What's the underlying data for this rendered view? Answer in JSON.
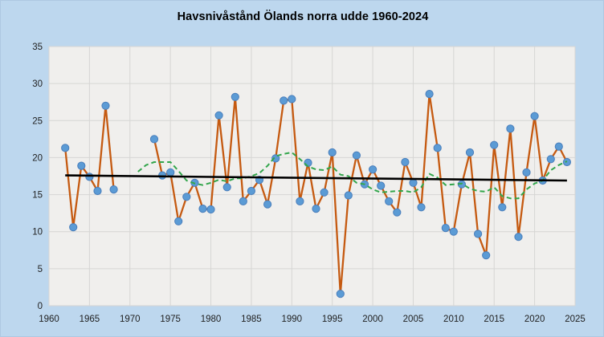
{
  "title": "Havsnivåstånd Ölands norra udde 1960-2024",
  "colors": {
    "background": "#BDD7EE",
    "plot_background": "#F0EFED",
    "gridline": "#D6D6D4",
    "observed_line": "#C55A11",
    "marker_fill": "#5B9BD5",
    "marker_edge": "#4A7EBB",
    "moving_average_line": "#33A64C",
    "trend_line": "#000000",
    "tick_text": "#1F1F1F",
    "title_text": "#000000"
  },
  "chart_data": {
    "type": "line",
    "title": "Havsnivåstånd Ölands norra udde 1960-2024",
    "xlabel": "",
    "ylabel": "",
    "xlim": [
      1960,
      2025
    ],
    "ylim": [
      0,
      35
    ],
    "x_ticks": [
      1960,
      1965,
      1970,
      1975,
      1980,
      1985,
      1990,
      1995,
      2000,
      2005,
      2010,
      2015,
      2020,
      2025
    ],
    "y_ticks": [
      0,
      5,
      10,
      15,
      20,
      25,
      30,
      35
    ],
    "grid": true,
    "legend": "none",
    "series": [
      {
        "id": "observed",
        "style": "solid-line-with-markers",
        "line_color": "#C55A11",
        "marker_color": "#5B9BD5",
        "years": [
          1962,
          1963,
          1964,
          1965,
          1966,
          1967,
          1968,
          1969,
          1970,
          1971,
          1972,
          1973,
          1974,
          1975,
          1976,
          1977,
          1978,
          1979,
          1980,
          1981,
          1982,
          1983,
          1984,
          1985,
          1986,
          1987,
          1988,
          1989,
          1990,
          1991,
          1992,
          1993,
          1994,
          1995,
          1996,
          1997,
          1998,
          1999,
          2000,
          2001,
          2002,
          2003,
          2004,
          2005,
          2006,
          2007,
          2008,
          2009,
          2010,
          2011,
          2012,
          2013,
          2014,
          2015,
          2016,
          2017,
          2018,
          2019,
          2020,
          2021,
          2022,
          2023,
          2024
        ],
        "values": [
          21.3,
          10.6,
          18.9,
          17.4,
          15.5,
          27.0,
          15.7,
          null,
          null,
          null,
          null,
          22.5,
          17.6,
          18.0,
          11.4,
          14.7,
          16.6,
          13.1,
          13.0,
          25.7,
          16.0,
          28.2,
          14.1,
          15.5,
          17.0,
          13.7,
          19.9,
          27.7,
          27.9,
          14.1,
          19.3,
          13.1,
          15.3,
          20.7,
          1.6,
          14.9,
          20.3,
          16.4,
          18.4,
          16.2,
          14.1,
          12.6,
          19.4,
          16.6,
          13.3,
          28.6,
          21.3,
          10.5,
          10.0,
          16.4,
          20.7,
          9.7,
          6.8,
          21.7,
          13.3,
          23.9,
          9.3,
          18.0,
          25.6,
          16.9,
          19.8,
          21.5,
          19.4
        ]
      },
      {
        "id": "moving-average",
        "style": "dashed-line",
        "line_color": "#33A64C",
        "years": [
          1971,
          1972,
          1973,
          1974,
          1975,
          1976,
          1977,
          1978,
          1979,
          1980,
          1981,
          1982,
          1983,
          1984,
          1985,
          1986,
          1987,
          1988,
          1989,
          1990,
          1991,
          1992,
          1993,
          1994,
          1995,
          1996,
          1997,
          1998,
          1999,
          2000,
          2001,
          2002,
          2003,
          2004,
          2005,
          2006,
          2007,
          2008,
          2009,
          2010,
          2011,
          2012,
          2013,
          2014,
          2015,
          2016,
          2017,
          2018,
          2019,
          2020,
          2021,
          2022,
          2023,
          2024
        ],
        "values": [
          18.1,
          19.0,
          19.4,
          19.4,
          19.4,
          18.2,
          16.9,
          16.5,
          16.3,
          16.6,
          17.0,
          16.8,
          17.2,
          17.2,
          17.5,
          17.9,
          18.9,
          20.2,
          20.5,
          20.7,
          19.8,
          18.8,
          18.4,
          18.3,
          18.8,
          17.7,
          17.5,
          16.6,
          16.4,
          15.7,
          15.3,
          15.4,
          15.5,
          15.5,
          15.3,
          16.0,
          17.8,
          17.3,
          16.3,
          16.4,
          16.5,
          15.8,
          15.5,
          15.4,
          16.0,
          14.8,
          14.5,
          14.5,
          15.7,
          16.5,
          16.9,
          18.3,
          19.0,
          19.5
        ]
      },
      {
        "id": "trend",
        "style": "solid-line",
        "line_color": "#000000",
        "years": [
          1962,
          2024
        ],
        "values": [
          17.6,
          16.9
        ]
      }
    ]
  }
}
